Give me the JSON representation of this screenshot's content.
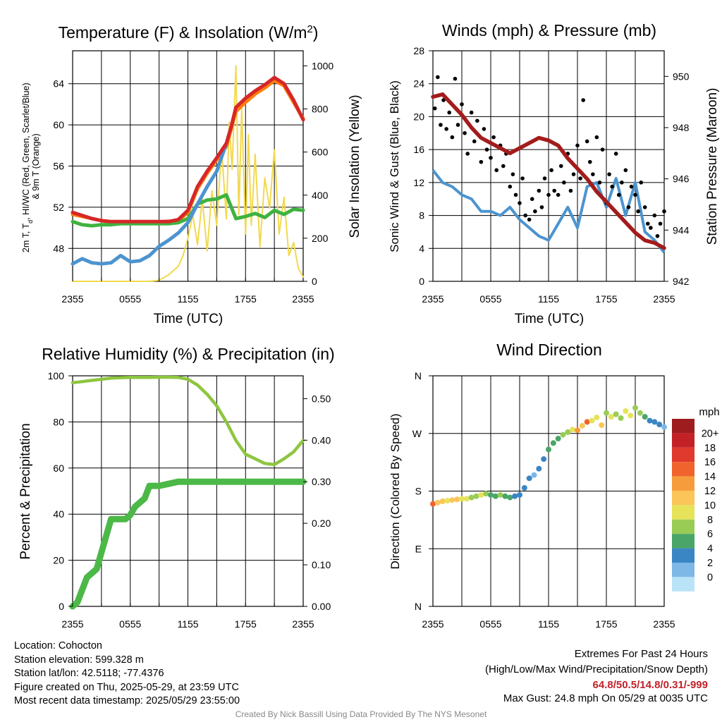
{
  "time_ticks": [
    "2355",
    "0555",
    "1155",
    "1755",
    "2355"
  ],
  "temperature_panel": {
    "title": "Temperature (F) & Insolation (W/m",
    "title_sup": "2",
    "title_end": ")",
    "ylabel_left_line1": "2m T, T",
    "ylabel_left_sub": "d",
    "ylabel_left_rest": ", HI/WC (Red, Green, Scarlet/Blue)",
    "ylabel_left_line2": "& 9m T (Orange)",
    "ylabel_right": "Solar Insolation (Yellow)",
    "xlabel": "Time (UTC)"
  },
  "winds_panel": {
    "title": "Winds (mph) & Pressure (mb)",
    "ylabel_left": "Sonic Wind & Gust (Blue, Black)",
    "ylabel_right": "Station Pressure (Maroon)",
    "xlabel": "Time (UTC)"
  },
  "rh_panel": {
    "title": "Relative Humidity (%) & Precipitation (in)",
    "ylabel_left": "Percent & Precipitation"
  },
  "direction_panel": {
    "title": "Wind Direction",
    "ylabel_left": "Direction (Colored By Speed)",
    "legend_title": "mph"
  },
  "footer": {
    "location": "Location: Cohocton",
    "elevation": "Station elevation: 599.328 m",
    "latlon": "Station lat/lon: 42.5118; -77.4376",
    "created": "Figure created on Thu, 2025-05-29, at 23:59 UTC",
    "recent": "Most recent data timestamp: 2025/05/29 23:55:00",
    "extremes_title": "Extremes For Past 24 Hours",
    "extremes_legend": "(High/Low/Max Wind/Precipitation/Snow Depth)",
    "extremes_values": "64.8/50.5/14.8/0.31/-999",
    "max_gust": "Max Gust: 24.8 mph On 05/29 at 0035 UTC",
    "credit": "Created By Nick Bassill Using Data Provided By The NYS Mesonet"
  },
  "chart_data": [
    {
      "type": "line",
      "panel": "temperature",
      "x_unit": "hours since 2355 UTC",
      "x_ticks": [
        "2355",
        "0555",
        "1155",
        "1755",
        "2355"
      ],
      "y_left": {
        "ticks": [
          48,
          52,
          56,
          60,
          64
        ],
        "range": [
          44.8,
          67.2
        ]
      },
      "y_right": {
        "ticks": [
          0,
          200,
          400,
          600,
          800,
          1000
        ],
        "range": [
          0,
          1070
        ]
      },
      "series": [
        {
          "name": "2m T (Red)",
          "color": "#d62728",
          "axis": "left",
          "x": [
            0,
            1,
            2,
            3,
            4,
            5,
            6,
            7,
            8,
            9,
            10,
            11,
            12,
            13,
            14,
            15,
            16,
            16.5,
            17,
            18,
            19,
            20,
            21,
            22,
            23,
            24
          ],
          "y": [
            51.5,
            51.2,
            50.9,
            50.7,
            50.6,
            50.6,
            50.6,
            50.6,
            50.6,
            50.6,
            50.6,
            50.8,
            51.7,
            54.0,
            55.5,
            56.8,
            58.2,
            59.8,
            61.7,
            62.6,
            63.3,
            63.9,
            64.6,
            64.0,
            62.4,
            60.5
          ]
        },
        {
          "name": "9m T (Orange)",
          "color": "#ff7f0e",
          "axis": "left",
          "x": [
            0,
            4,
            8,
            11,
            12,
            13,
            14,
            15,
            16,
            17,
            18,
            19,
            20,
            21,
            22,
            23,
            24
          ],
          "y": [
            51.3,
            50.5,
            50.5,
            50.7,
            51.5,
            53.8,
            55.3,
            56.6,
            57.9,
            61.3,
            62.2,
            63.0,
            63.6,
            64.3,
            63.8,
            62.2,
            60.6
          ]
        },
        {
          "name": "Td (Green)",
          "color": "#3fb23f",
          "axis": "left",
          "x": [
            0,
            1,
            2,
            3,
            4,
            5,
            6,
            7,
            8,
            9,
            10,
            11,
            12,
            13,
            14,
            15,
            16,
            17,
            18,
            19,
            20,
            21,
            22,
            23,
            24
          ],
          "y": [
            50.6,
            50.3,
            50.2,
            50.3,
            50.3,
            50.4,
            50.4,
            50.4,
            50.4,
            50.4,
            50.4,
            50.5,
            50.9,
            52.3,
            52.7,
            52.8,
            53.2,
            50.9,
            51.1,
            51.4,
            51.0,
            51.7,
            51.3,
            51.8,
            51.7
          ]
        },
        {
          "name": "HI/WC (Blue)",
          "color": "#4c94cf",
          "axis": "left",
          "x": [
            0,
            1,
            2,
            3,
            4,
            5,
            6,
            7,
            8,
            9,
            10,
            11,
            12,
            13,
            14,
            15,
            16
          ],
          "y": [
            46.5,
            47.0,
            46.6,
            46.5,
            46.6,
            47.3,
            46.7,
            46.8,
            47.3,
            48.2,
            48.8,
            49.5,
            50.5,
            52.3,
            54.0,
            55.5,
            58.2
          ]
        },
        {
          "name": "Solar Insolation (Yellow)",
          "color": "#f2d94e",
          "axis": "right",
          "x": [
            0,
            8,
            9,
            10,
            11,
            11.5,
            12,
            12.5,
            13,
            13.5,
            14,
            14.5,
            15,
            15.5,
            16,
            16.3,
            16.6,
            17,
            17.3,
            17.6,
            18,
            18.3,
            18.6,
            19,
            19.5,
            20,
            20.5,
            21,
            21.5,
            22,
            22.5,
            23,
            23.5,
            24
          ],
          "y": [
            0,
            0,
            5,
            30,
            70,
            120,
            200,
            310,
            170,
            380,
            140,
            420,
            260,
            620,
            290,
            740,
            520,
            1000,
            310,
            800,
            220,
            680,
            260,
            590,
            160,
            480,
            340,
            610,
            220,
            390,
            120,
            180,
            60,
            20
          ]
        }
      ]
    },
    {
      "type": "scatter",
      "panel": "winds",
      "x_unit": "hours since 2355 UTC",
      "x_ticks": [
        "2355",
        "0555",
        "1155",
        "1755",
        "2355"
      ],
      "y_left": {
        "ticks": [
          0,
          4,
          8,
          12,
          16,
          20,
          24,
          28
        ],
        "range": [
          0,
          28
        ]
      },
      "y_right": {
        "ticks": [
          942,
          944,
          946,
          948,
          950
        ],
        "range": [
          942,
          951
        ]
      },
      "series": [
        {
          "name": "Sonic Wind (Blue)",
          "color": "#4c94cf",
          "axis": "left",
          "style": "line",
          "x": [
            0,
            1,
            2,
            3,
            4,
            5,
            6,
            7,
            8,
            9,
            10,
            11,
            12,
            13,
            14,
            15,
            16,
            17,
            18,
            19,
            20,
            21,
            22,
            23,
            24
          ],
          "y": [
            13.5,
            12.0,
            11.5,
            10.5,
            10.0,
            8.5,
            8.5,
            8.0,
            9.0,
            7.5,
            6.5,
            5.5,
            5.0,
            7.0,
            9.0,
            6.5,
            11.5,
            12.0,
            9.0,
            12.5,
            8.0,
            12.0,
            6.0,
            5.0,
            3.5
          ]
        },
        {
          "name": "Gust (Black)",
          "color": "#000000",
          "axis": "left",
          "style": "dots",
          "x": [
            0.2,
            0.5,
            0.8,
            1.1,
            1.4,
            1.7,
            2.0,
            2.3,
            2.6,
            3.0,
            3.3,
            3.6,
            4.0,
            4.3,
            4.6,
            5.0,
            5.3,
            5.6,
            6.0,
            6.3,
            6.6,
            7.0,
            7.3,
            7.6,
            8.0,
            8.3,
            8.6,
            9.0,
            9.3,
            9.6,
            10.0,
            10.3,
            10.6,
            11.0,
            11.3,
            11.6,
            12.0,
            12.3,
            12.6,
            13.0,
            13.3,
            13.6,
            14.0,
            14.3,
            14.6,
            15.0,
            15.3,
            15.6,
            16.0,
            16.3,
            16.6,
            17.0,
            17.3,
            17.6,
            18.0,
            18.3,
            18.6,
            19.0,
            19.3,
            19.6,
            20.0,
            20.3,
            20.6,
            21.0,
            21.3,
            21.6,
            22.0,
            22.3,
            22.6,
            23.0,
            23.3,
            23.6,
            24.0
          ],
          "y": [
            21.0,
            24.8,
            19.0,
            22.0,
            18.5,
            20.5,
            17.5,
            24.6,
            19.0,
            21.5,
            18.0,
            15.5,
            20.5,
            17.0,
            19.5,
            14.5,
            18.5,
            16.0,
            15.0,
            17.5,
            13.5,
            16.5,
            14.0,
            15.5,
            11.5,
            13.0,
            10.5,
            9.5,
            12.5,
            8.0,
            7.5,
            10.0,
            8.5,
            11.0,
            9.0,
            12.5,
            10.5,
            13.5,
            11.0,
            10.5,
            14.0,
            12.0,
            15.5,
            11.0,
            13.0,
            16.5,
            12.5,
            22.0,
            17.0,
            14.5,
            13.0,
            17.5,
            12.0,
            16.0,
            9.5,
            13.0,
            11.5,
            15.5,
            10.5,
            12.0,
            13.5,
            9.0,
            11.5,
            10.5,
            8.5,
            12.0,
            9.0,
            7.0,
            6.5,
            8.0,
            5.5,
            7.0,
            8.5
          ]
        },
        {
          "name": "Station Pressure (Maroon)",
          "color": "#a31c1c",
          "axis": "right",
          "style": "line",
          "x": [
            0,
            1,
            2,
            3,
            4,
            5,
            6,
            7,
            8,
            9,
            10,
            11,
            12,
            13,
            14,
            15,
            16,
            17,
            18,
            19,
            20,
            21,
            22,
            23,
            24
          ],
          "y": [
            949.2,
            949.3,
            948.9,
            948.5,
            948.0,
            947.6,
            947.4,
            947.2,
            947.0,
            947.2,
            947.4,
            947.6,
            947.5,
            947.3,
            946.8,
            946.4,
            946.0,
            945.5,
            945.1,
            944.7,
            944.3,
            943.9,
            943.6,
            943.5,
            943.3
          ]
        }
      ]
    },
    {
      "type": "line",
      "panel": "relative_humidity",
      "x_unit": "hours since 2355 UTC",
      "x_ticks": [
        "2355",
        "0555",
        "1155",
        "1755",
        "2355"
      ],
      "y_left": {
        "ticks": [
          0,
          20,
          40,
          60,
          80,
          100
        ],
        "range": [
          0,
          100
        ]
      },
      "y_right": {
        "ticks": [
          0.0,
          0.1,
          0.2,
          0.3,
          0.4,
          0.5
        ],
        "range": [
          0,
          0.555
        ]
      },
      "series": [
        {
          "name": "Relative Humidity",
          "color": "#8dc63f",
          "axis": "left",
          "x": [
            0,
            1,
            2,
            3,
            4,
            5,
            6,
            7,
            8,
            9,
            10,
            11,
            12,
            13,
            14,
            15,
            16,
            17,
            18,
            19,
            20,
            21,
            22,
            23,
            24
          ],
          "y": [
            97,
            97.5,
            98,
            98.5,
            99,
            99.2,
            99.3,
            99.3,
            99.3,
            99.4,
            99.4,
            99.3,
            98.5,
            96,
            92,
            87,
            80,
            72,
            66,
            64,
            62,
            61.5,
            64,
            67,
            72
          ]
        },
        {
          "name": "Precipitation",
          "color": "#4cb848",
          "axis": "right",
          "x": [
            0,
            0.5,
            1,
            1.5,
            2,
            2.5,
            3,
            3.5,
            4,
            4.5,
            5,
            5.5,
            6,
            6.5,
            7,
            7.5,
            8,
            9,
            10,
            11,
            12,
            13,
            14,
            16,
            18,
            20,
            22,
            24
          ],
          "y": [
            0,
            0.01,
            0.04,
            0.07,
            0.08,
            0.09,
            0.13,
            0.17,
            0.21,
            0.21,
            0.21,
            0.21,
            0.22,
            0.24,
            0.25,
            0.26,
            0.29,
            0.29,
            0.295,
            0.3,
            0.3,
            0.3,
            0.3,
            0.3,
            0.3,
            0.3,
            0.3,
            0.3
          ]
        }
      ]
    },
    {
      "type": "scatter",
      "panel": "wind_direction",
      "x_unit": "hours since 2355 UTC",
      "x_ticks": [
        "2355",
        "0555",
        "1155",
        "1755",
        "2355"
      ],
      "y_ticks": [
        "N",
        "E",
        "S",
        "W",
        "N"
      ],
      "y_range_degrees": [
        0,
        360
      ],
      "legend": {
        "title": "mph",
        "labels": [
          "20+",
          "18",
          "16",
          "14",
          "12",
          "10",
          "8",
          "6",
          "4",
          "2",
          "0"
        ],
        "colors": [
          "#9e1b1e",
          "#c42127",
          "#e0392e",
          "#f0632d",
          "#f79c3c",
          "#fbc559",
          "#e6e35a",
          "#99cc55",
          "#4aa568",
          "#3a86c4",
          "#7db8e6",
          "#b9e3f7"
        ]
      },
      "points": {
        "x": [
          0,
          0.5,
          1,
          1.5,
          2,
          2.5,
          3,
          3.5,
          4,
          4.5,
          5,
          5.5,
          6,
          6.5,
          7,
          7.5,
          8,
          8.5,
          9,
          9.5,
          10,
          10.5,
          11,
          11.5,
          12,
          12.5,
          13,
          13.5,
          14,
          14.5,
          15,
          15.5,
          16,
          16.5,
          17,
          17.5,
          18,
          18.5,
          19,
          19.5,
          20,
          20.5,
          21,
          21.5,
          22,
          22.5,
          23,
          23.5,
          24
        ],
        "deg": [
          160,
          162,
          164,
          165,
          166,
          167,
          168,
          168,
          170,
          172,
          174,
          176,
          174,
          172,
          174,
          172,
          170,
          172,
          174,
          185,
          200,
          205,
          215,
          230,
          245,
          255,
          262,
          268,
          272,
          276,
          275,
          282,
          288,
          290,
          295,
          283,
          302,
          296,
          300,
          294,
          305,
          298,
          310,
          302,
          296,
          290,
          288,
          284,
          280
        ],
        "mph": [
          16,
          12,
          12,
          11,
          12,
          12,
          11,
          10,
          9,
          8,
          10,
          8,
          7,
          6,
          8,
          7,
          6,
          5,
          5,
          4,
          4,
          3,
          4,
          5,
          6,
          7,
          6,
          8,
          9,
          10,
          14,
          12,
          16,
          10,
          11,
          12,
          9,
          10,
          8,
          8,
          10,
          11,
          9,
          8,
          6,
          5,
          4,
          4,
          3
        ]
      }
    }
  ]
}
